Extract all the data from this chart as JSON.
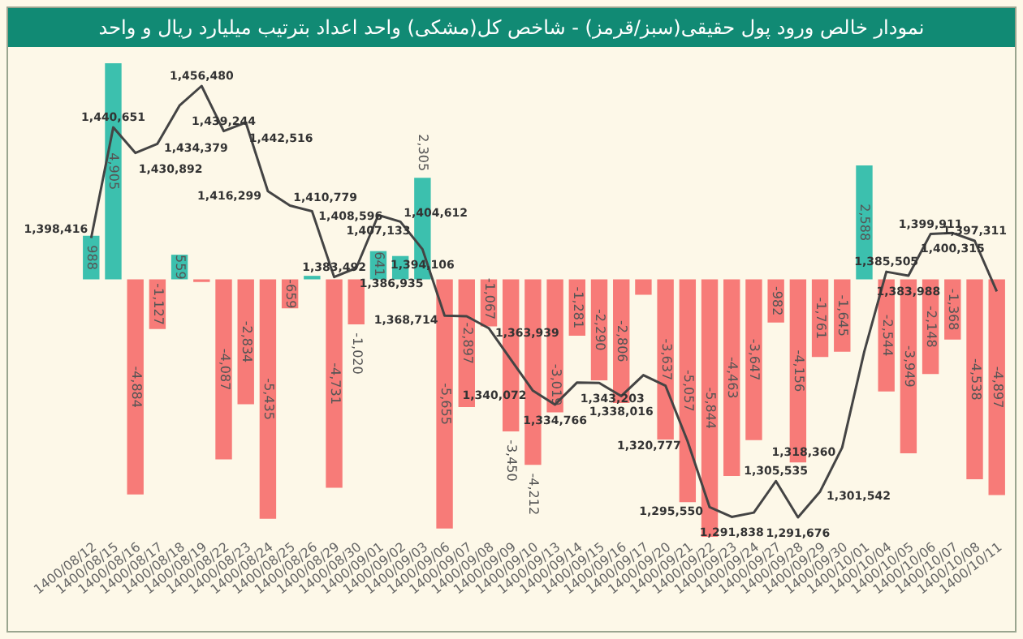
{
  "chart_data": {
    "type": "bar",
    "title": "نمودار خالص ورود پول حقیقی(سبز/قرمز) - شاخص کل(مشکی) واحد اعداد بترتیب میلیارد ریال و واحد",
    "categories": [
      "1400/08/12",
      "1400/08/15",
      "1400/08/16",
      "1400/08/17",
      "1400/08/18",
      "1400/08/19",
      "1400/08/22",
      "1400/08/23",
      "1400/08/24",
      "1400/08/25",
      "1400/08/26",
      "1400/08/29",
      "1400/08/30",
      "1400/09/01",
      "1400/09/02",
      "1400/09/03",
      "1400/09/06",
      "1400/09/07",
      "1400/09/08",
      "1400/09/09",
      "1400/09/10",
      "1400/09/13",
      "1400/09/14",
      "1400/09/15",
      "1400/09/16",
      "1400/09/17",
      "1400/09/20",
      "1400/09/21",
      "1400/09/22",
      "1400/09/23",
      "1400/09/24",
      "1400/09/27",
      "1400/09/28",
      "1400/09/29",
      "1400/09/30",
      "1400/10/01",
      "1400/10/04",
      "1400/10/05",
      "1400/10/06",
      "1400/10/07",
      "1400/10/08",
      "1400/10/11"
    ],
    "tick_labels": "x",
    "series": [
      {
        "values": [
          988,
          4905,
          -4884,
          -1127,
          559,
          -60,
          -4087,
          -2834,
          -5435,
          -659,
          80,
          -4731,
          -1020,
          641,
          530,
          2305,
          -5655,
          -2897,
          -1067,
          -3450,
          -4212,
          -3019,
          -1281,
          -2290,
          -2806,
          -350,
          -3637,
          -5057,
          -5844,
          -4463,
          -3647,
          -982,
          -4156,
          -1761,
          -1645,
          2588,
          -2544,
          -3949,
          -2148,
          -1368,
          -4538,
          -4897
        ],
        "value_labels": [
          "988",
          "4,905",
          "-4,884",
          "-1,127",
          "559",
          null,
          "-4,087",
          "-2,834",
          "-5,435",
          "-659",
          null,
          "-4,731",
          "-1,020",
          "641",
          null,
          "2,305",
          "-5,655",
          "-2,897",
          "-1,067",
          "-3,450",
          "-4,212",
          "-3,019",
          "-1,281",
          "-2,290",
          "-2,806",
          null,
          "-3,637",
          "-5,057",
          "-5,844",
          "-4,463",
          "-3,647",
          "-982",
          "-4,156",
          "-1,761",
          "-1,645",
          "2,588",
          "-2,544",
          "-3,949",
          "-2,148",
          "-1,368",
          "-4,538",
          "-4,897"
        ],
        "colors": [
          "#3cc0ae",
          "#3cc0ae",
          "#f77b78",
          "#f77b78",
          "#3cc0ae",
          "#f77b78",
          "#f77b78",
          "#f77b78",
          "#f77b78",
          "#f77b78",
          "#3cc0ae",
          "#f77b78",
          "#f77b78",
          "#3cc0ae",
          "#3cc0ae",
          "#3cc0ae",
          "#f77b78",
          "#f77b78",
          "#f77b78",
          "#f77b78",
          "#f77b78",
          "#f77b78",
          "#f77b78",
          "#f77b78",
          "#f77b78",
          "#f77b78",
          "#f77b78",
          "#f77b78",
          "#f77b78",
          "#f77b78",
          "#f77b78",
          "#f77b78",
          "#f77b78",
          "#f77b78",
          "#f77b78",
          "#3cc0ae",
          "#f77b78",
          "#f77b78",
          "#f77b78",
          "#f77b78",
          "#f77b78",
          "#f77b78"
        ]
      },
      {
        "type": "line",
        "axis": "y2",
        "color": "#444444",
        "values": [
          1398416,
          1440651,
          1430892,
          1434379,
          1449000,
          1456480,
          1439244,
          1442516,
          1416299,
          1410779,
          1408596,
          1383492,
          1386935,
          1407133,
          1404612,
          1394106,
          1368714,
          1368500,
          1363939,
          1352000,
          1340072,
          1334766,
          1343203,
          1343000,
          1338016,
          1346000,
          1342000,
          1320777,
          1295550,
          1291838,
          1293500,
          1305535,
          1291676,
          1301542,
          1318360,
          1355000,
          1385505,
          1383988,
          1399911,
          1400315,
          1397311,
          1378000
        ],
        "value_labels": [
          "1,398,416",
          "1,440,651",
          "1,430,892",
          "1,434,379",
          null,
          "1,456,480",
          "1,439,244",
          "1,442,516",
          "1,416,299",
          "1,410,779",
          "1,408,596",
          "1,383,492",
          "1,386,935",
          "1,407,133",
          "1,404,612",
          "1,394,106",
          "1,368,714",
          null,
          "1,363,939",
          null,
          "1,340,072",
          "1,334,766",
          "1,343,203",
          null,
          "1,338,016",
          null,
          null,
          "1,320,777",
          "1,295,550",
          "1,291,838",
          null,
          "1,305,535",
          "1,291,676",
          "1,301,542",
          "1,318,360",
          null,
          "1,385,505",
          "1,383,988",
          "1,399,911",
          "1,400,315",
          "1,397,311",
          null
        ]
      }
    ]
  }
}
